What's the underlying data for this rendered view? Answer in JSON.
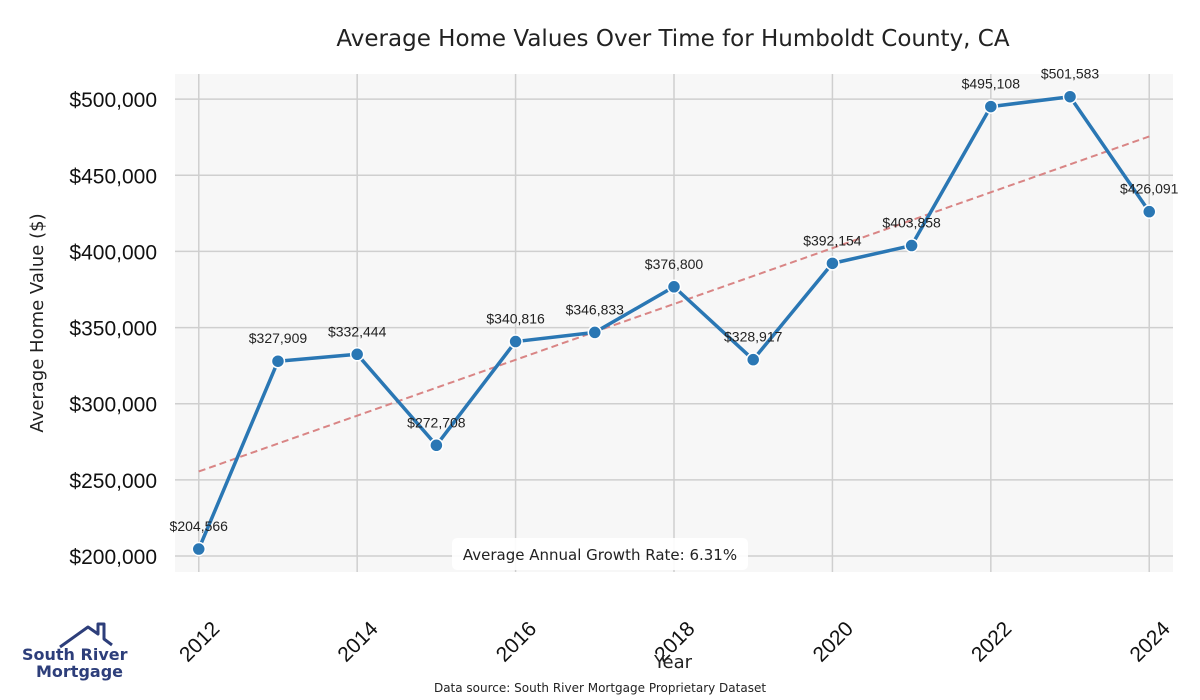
{
  "chart_data": {
    "type": "line",
    "title": "Average Home Values Over Time for Humboldt County, CA",
    "xlabel": "Year",
    "ylabel": "Average Home Value ($)",
    "x": [
      2012,
      2013,
      2014,
      2015,
      2016,
      2017,
      2018,
      2019,
      2020,
      2021,
      2022,
      2023,
      2024
    ],
    "series": [
      {
        "values": [
          204566,
          327909,
          332444,
          272708,
          340816,
          346833,
          376800,
          328917,
          392154,
          403858,
          495108,
          501583,
          426091
        ],
        "labels": [
          "$204,566",
          "$327,909",
          "$332,444",
          "$272,708",
          "$340,816",
          "$346,833",
          "$376,800",
          "$328,917",
          "$392,154",
          "$403,858",
          "$495,108",
          "$501,583",
          "$426,091"
        ],
        "color": "#2a77b4"
      }
    ],
    "trendline": {
      "start": [
        2012,
        255500
      ],
      "end": [
        2024,
        475500
      ],
      "color": "#d98585"
    },
    "xticks": [
      2012,
      2014,
      2016,
      2018,
      2020,
      2022,
      2024
    ],
    "xtick_labels": [
      "2012",
      "2014",
      "2016",
      "2018",
      "2020",
      "2022",
      "2024"
    ],
    "yticks": [
      200000,
      250000,
      300000,
      350000,
      400000,
      450000,
      500000
    ],
    "ytick_labels": [
      "$200,000",
      "$250,000",
      "$300,000",
      "$350,000",
      "$400,000",
      "$450,000",
      "$500,000"
    ],
    "xlim": [
      2011.7,
      2024.3
    ],
    "ylim": [
      189500,
      516500
    ],
    "grid": true,
    "annotation": "Average Annual Growth Rate: 6.31%"
  },
  "footer": {
    "source": "Data source: South River Mortgage Proprietary Dataset"
  },
  "logo": {
    "line1": "South River",
    "line2": "Mortgage",
    "color": "#2d3e7a",
    "icon": "house-roof-icon"
  }
}
